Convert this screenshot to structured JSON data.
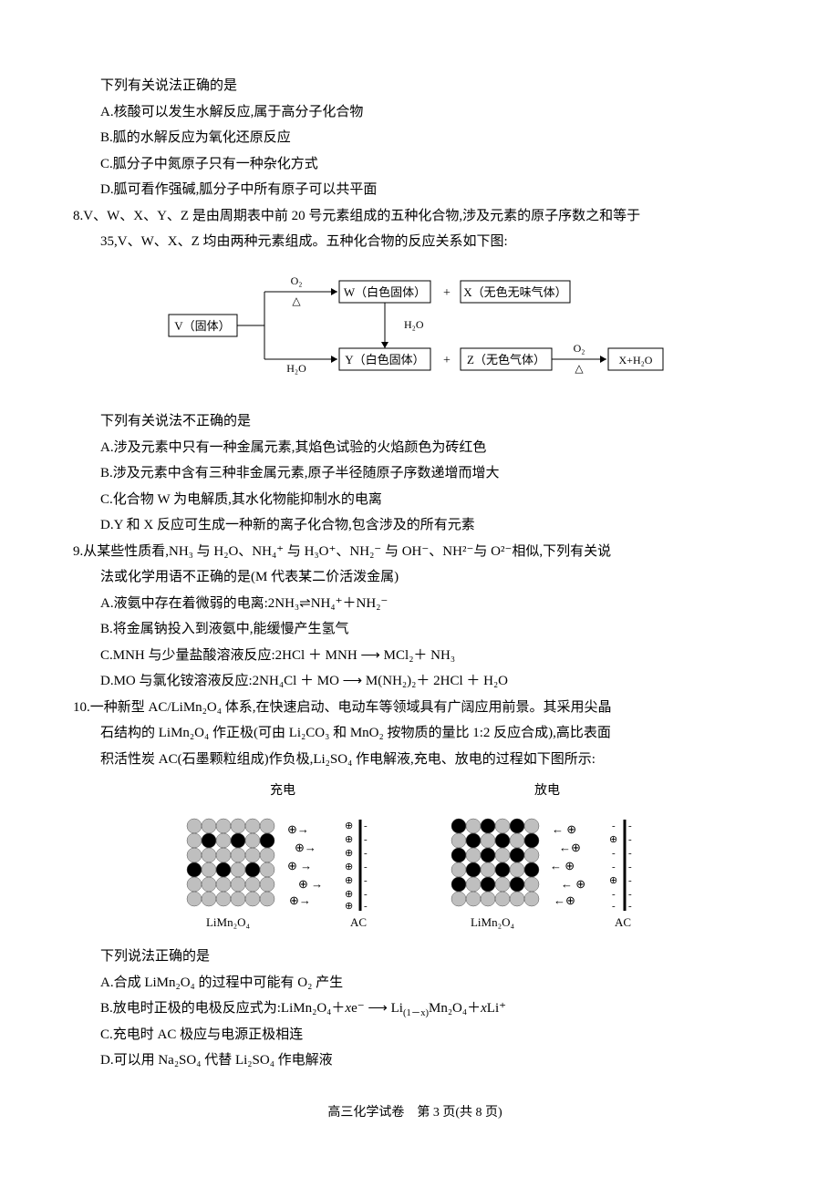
{
  "q7": {
    "stem": "下列有关说法正确的是",
    "A": "A.核酸可以发生水解反应,属于高分子化合物",
    "B": "B.胍的水解反应为氧化还原反应",
    "C": "C.胍分子中氮原子只有一种杂化方式",
    "D": "D.胍可看作强碱,胍分子中所有原子可以共平面"
  },
  "q8": {
    "stem1": "8.V、W、X、Y、Z 是由周期表中前 20 号元素组成的五种化合物,涉及元素的原子序数之和等于",
    "stem2": "35,V、W、X、Z 均由两种元素组成。五种化合物的反应关系如下图:",
    "diagram": {
      "V": "V（固体）",
      "W": "W（白色固体）",
      "X": "X（无色无味气体）",
      "Y": "Y（白色固体）",
      "Z": "Z（无色气体）",
      "O2": "O₂",
      "H2O": "H₂O",
      "tri": "△",
      "prod": "X+H₂O",
      "plus": "+"
    },
    "sub": "下列有关说法不正确的是",
    "A": "A.涉及元素中只有一种金属元素,其焰色试验的火焰颜色为砖红色",
    "B": "B.涉及元素中含有三种非金属元素,原子半径随原子序数递增而增大",
    "C": "C.化合物 W 为电解质,其水化物能抑制水的电离",
    "D": "D.Y 和 X 反应可生成一种新的离子化合物,包含涉及的所有元素"
  },
  "q9": {
    "stem1": "9.从某些性质看,NH₃ 与 H₂O、NH₄⁺ 与 H₃O⁺、NH₂⁻ 与 OH⁻、NH²⁻与 O²⁻相似,下列有关说",
    "stem2": "法或化学用语不正确的是(M 代表某二价活泼金属)",
    "A": "A.液氨中存在着微弱的电离:2NH₃⇌NH₄⁺＋NH₂⁻",
    "B": "B.将金属钠投入到液氨中,能缓慢产生氢气",
    "C": "C.MNH 与少量盐酸溶液反应:2HCl ＋ MNH ⟶ MCl₂＋ NH₃",
    "D": "D.MO 与氯化铵溶液反应:2NH₄Cl ＋ MO ⟶ M(NH₂)₂＋ 2HCl ＋ H₂O"
  },
  "q10": {
    "stem1": "10.一种新型 AC/LiMn₂O₄ 体系,在快速启动、电动车等领域具有广阔应用前景。其采用尖晶",
    "stem2": "石结构的 LiMn₂O₄ 作正极(可由 Li₂CO₃ 和 MnO₂ 按物质的量比 1:2 反应合成),高比表面",
    "stem3": "积活性炭 AC(石墨颗粒组成)作负极,Li₂SO₄ 作电解液,充电、放电的过程如下图所示:",
    "charge_title": "充电",
    "discharge_title": "放电",
    "elec_left": "LiMn₂O₄",
    "elec_right": "AC",
    "sub": "下列说法正确的是",
    "A": "A.合成 LiMn₂O₄ 的过程中可能有 O₂ 产生",
    "B_pre": "B.放电时正极的电极反应式为:LiMn₂O₄＋",
    "B_mid1": "e⁻ ⟶ Li",
    "B_mid2": "Mn₂O₄＋",
    "B_post": "Li⁺",
    "B_x": "x",
    "B_1mx": "(1－x)",
    "C": "C.充电时 AC 极应与电源正极相连",
    "D": "D.可以用 Na₂SO₄ 代替 Li₂SO₄ 作电解液"
  },
  "footer": "高三化学试卷　第 3 页(共 8 页)"
}
